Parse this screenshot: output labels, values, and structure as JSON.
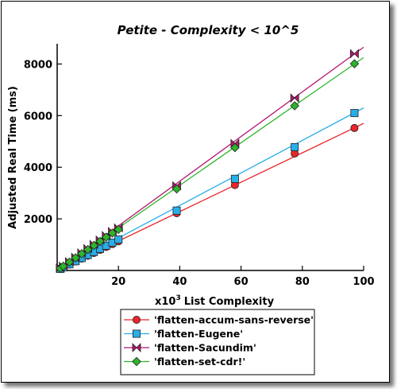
{
  "chart_data": {
    "type": "line",
    "title": "Petite - Complexity < 10^5",
    "xlabel_prefix": "x10",
    "xlabel_exp": "3",
    "xlabel_rest": "List Complexity",
    "ylabel": "Adjusted Real Time (ms)",
    "xlim": [
      0,
      100
    ],
    "ylim": [
      0,
      8600
    ],
    "x_ticks": [
      20,
      40,
      60,
      80,
      100
    ],
    "y_ticks": [
      2000,
      4000,
      6000,
      8000
    ],
    "grid": false,
    "legend_position": "bottom",
    "x": [
      1,
      2,
      4,
      6,
      8,
      10,
      12,
      14,
      16,
      18,
      20,
      39,
      58,
      77.5,
      97
    ],
    "series": [
      {
        "name": "'flatten-accum-sans-reverse'",
        "color": "#e8262a",
        "marker": "circle",
        "values": [
          60,
          115,
          230,
          350,
          460,
          570,
          680,
          800,
          910,
          1020,
          1130,
          2220,
          3310,
          4530,
          5520
        ],
        "fit": [
          [
            0,
            0
          ],
          [
            100,
            5700
          ]
        ]
      },
      {
        "name": "'flatten-Eugene'",
        "color": "#2aaee8",
        "marker": "square",
        "values": [
          60,
          120,
          240,
          360,
          480,
          600,
          720,
          840,
          960,
          1080,
          1200,
          2320,
          3550,
          4780,
          6100
        ],
        "fit": [
          [
            0,
            0
          ],
          [
            100,
            6300
          ]
        ]
      },
      {
        "name": "'flatten-Sacundim'",
        "color": "#b5156f",
        "marker": "bowtie",
        "values": [
          90,
          170,
          340,
          510,
          680,
          850,
          1010,
          1180,
          1350,
          1510,
          1650,
          3280,
          4920,
          6680,
          8400
        ],
        "fit": [
          [
            0,
            0
          ],
          [
            100,
            8650
          ]
        ]
      },
      {
        "name": "'flatten-set-cdr!'",
        "color": "#2cb52c",
        "marker": "diamond",
        "values": [
          85,
          165,
          325,
          490,
          650,
          810,
          970,
          1130,
          1290,
          1450,
          1590,
          3160,
          4760,
          6380,
          8010
        ],
        "fit": [
          [
            0,
            0
          ],
          [
            100,
            8250
          ]
        ]
      }
    ]
  }
}
